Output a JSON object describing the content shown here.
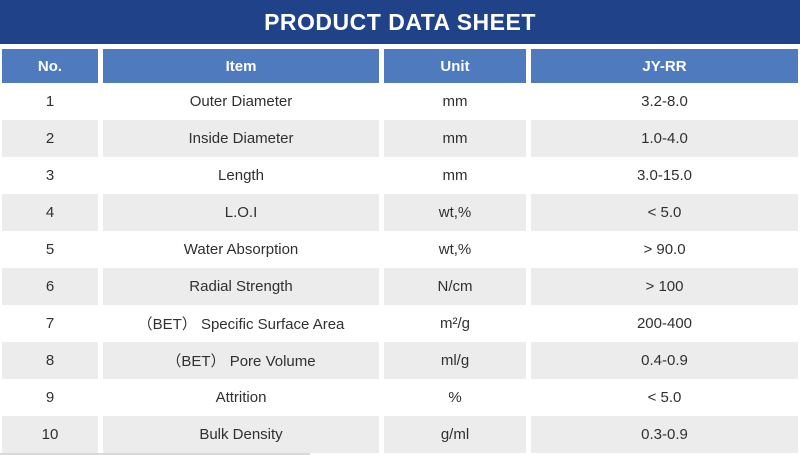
{
  "title": "PRODUCT DATA SHEET",
  "table": {
    "columns": {
      "no": "No.",
      "item": "Item",
      "unit": "Unit",
      "grade": "JY-RR"
    },
    "rows": [
      {
        "no": "1",
        "item": "Outer Diameter",
        "unit": "mm",
        "value": "3.2-8.0"
      },
      {
        "no": "2",
        "item": "Inside Diameter",
        "unit": "mm",
        "value": "1.0-4.0"
      },
      {
        "no": "3",
        "item": "Length",
        "unit": "mm",
        "value": "3.0-15.0"
      },
      {
        "no": "4",
        "item": "L.O.I",
        "unit": "wt,%",
        "value": "< 5.0"
      },
      {
        "no": "5",
        "item": "Water Absorption",
        "unit": "wt,%",
        "value": "> 90.0"
      },
      {
        "no": "6",
        "item": "Radial Strength",
        "unit": "N/cm",
        "value": "> 100"
      },
      {
        "no": "7",
        "item": "（BET） Specific Surface Area",
        "unit": "m²/g",
        "value": "200-400"
      },
      {
        "no": "8",
        "item": "（BET） Pore Volume",
        "unit": "ml/g",
        "value": "0.4-0.9"
      },
      {
        "no": "9",
        "item": "Attrition",
        "unit": "%",
        "value": "< 5.0"
      },
      {
        "no": "10",
        "item": "Bulk Density",
        "unit": "g/ml",
        "value": "0.3-0.9"
      }
    ]
  },
  "colors": {
    "title_bar": "#1F4288",
    "header_row": "#4F7BBE",
    "stripe_row": "#ECECEC",
    "text": "#303030"
  }
}
